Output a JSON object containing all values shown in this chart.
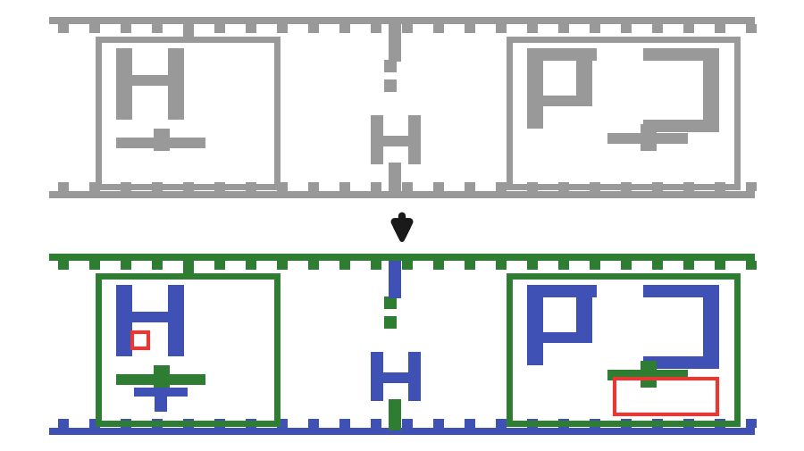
{
  "background": "#ffffff",
  "gray_color": "#999999",
  "green_color": "#2e7d32",
  "blue_color": "#3f51b5",
  "red_color": "#e53935",
  "arrow_color": "#1a1a1a",
  "lw": 5,
  "gray_lw": 5
}
